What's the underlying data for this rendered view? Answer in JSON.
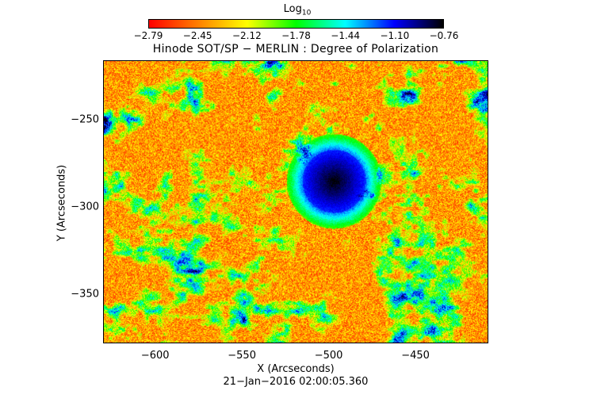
{
  "colorbar": {
    "title": "Log",
    "title_sub": "10",
    "ticks": [
      "−2.79",
      "−2.45",
      "−2.12",
      "−1.78",
      "−1.44",
      "−1.10",
      "−0.76"
    ],
    "colors": [
      "#ff0000",
      "#ff7f00",
      "#ffff00",
      "#00ff00",
      "#00ffff",
      "#0000ff",
      "#000000"
    ]
  },
  "image": {
    "title": "Hinode SOT/SP − MERLIN : Degree of Polarization",
    "xlabel": "X (Arcseconds)",
    "ylabel": "Y (Arcseconds)",
    "x_ticks": [
      "−600",
      "−550",
      "−500",
      "−450"
    ],
    "y_ticks": [
      "−250",
      "−300",
      "−350"
    ],
    "x_range": [
      -630,
      -408
    ],
    "y_range": [
      -378,
      -216
    ],
    "timestamp": "21−Jan−2016 02:00:05.360"
  }
}
